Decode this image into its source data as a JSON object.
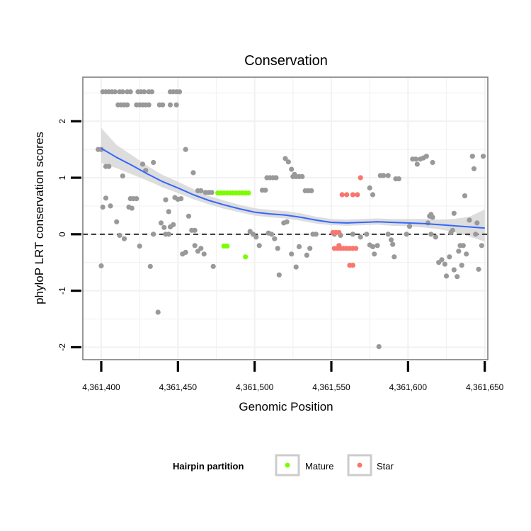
{
  "chart_data": {
    "type": "scatter",
    "title": "Conservation",
    "xlabel": "Genomic Position",
    "ylabel": "phyloP LRT conservation scores",
    "xlim": [
      4361388,
      4361652
    ],
    "ylim": [
      -2.22,
      2.78
    ],
    "x_ticks": [
      4361400,
      4361450,
      4361500,
      4361550,
      4361600,
      4361650
    ],
    "x_tick_labels": [
      "4,361,400",
      "4,361,450",
      "4,361,500",
      "4,361,550",
      "4,361,600",
      "4,361,650"
    ],
    "y_ticks": [
      -2,
      -1,
      0,
      1,
      2
    ],
    "y_tick_labels": [
      "-2",
      "-1",
      "0",
      "1",
      "2"
    ],
    "reference_line": {
      "y": 0,
      "style": "dashed"
    },
    "legend": {
      "title": "Hairpin partition",
      "position": "bottom",
      "entries": [
        {
          "label": "Mature",
          "color": "#7cfc00"
        },
        {
          "label": "Star",
          "color": "#f8766d"
        }
      ]
    },
    "colors": {
      "other": "#999999",
      "Mature": "#7cfc00",
      "Star": "#f8766d",
      "smooth_line": "#3366ff",
      "band": "#d9d9d9",
      "panel_border": "#7f7f7f",
      "grid": "#f2f2f2"
    },
    "smooth": {
      "x": [
        4361400,
        4361410,
        4361420,
        4361430,
        4361440,
        4361450,
        4361460,
        4361470,
        4361480,
        4361490,
        4361500,
        4361510,
        4361520,
        4361530,
        4361540,
        4361550,
        4361560,
        4361570,
        4361580,
        4361590,
        4361600,
        4361610,
        4361620,
        4361630,
        4361640,
        4361650
      ],
      "y": [
        1.52,
        1.36,
        1.22,
        1.07,
        0.93,
        0.82,
        0.7,
        0.6,
        0.52,
        0.45,
        0.39,
        0.36,
        0.34,
        0.3,
        0.25,
        0.21,
        0.2,
        0.21,
        0.22,
        0.21,
        0.2,
        0.19,
        0.17,
        0.15,
        0.13,
        0.11
      ],
      "lower": [
        1.26,
        1.17,
        1.06,
        0.95,
        0.83,
        0.73,
        0.62,
        0.53,
        0.45,
        0.39,
        0.33,
        0.3,
        0.28,
        0.24,
        0.19,
        0.16,
        0.15,
        0.16,
        0.17,
        0.15,
        0.14,
        0.12,
        0.09,
        0.04,
        -0.04,
        -0.13
      ],
      "upper": [
        1.88,
        1.58,
        1.4,
        1.21,
        1.05,
        0.93,
        0.8,
        0.68,
        0.6,
        0.52,
        0.46,
        0.43,
        0.41,
        0.37,
        0.31,
        0.27,
        0.26,
        0.27,
        0.28,
        0.27,
        0.27,
        0.27,
        0.26,
        0.27,
        0.31,
        0.44
      ]
    },
    "series": [
      {
        "name": "other",
        "points": [
          [
            4361401,
            2.52
          ],
          [
            4361403,
            2.52
          ],
          [
            4361405,
            2.52
          ],
          [
            4361407,
            2.52
          ],
          [
            4361409,
            2.52
          ],
          [
            4361412,
            2.52
          ],
          [
            4361414,
            2.52
          ],
          [
            4361417,
            2.52
          ],
          [
            4361419,
            2.52
          ],
          [
            4361424,
            2.52
          ],
          [
            4361426,
            2.52
          ],
          [
            4361428,
            2.52
          ],
          [
            4361431,
            2.52
          ],
          [
            4361433,
            2.52
          ],
          [
            4361445,
            2.52
          ],
          [
            4361447,
            2.52
          ],
          [
            4361449,
            2.52
          ],
          [
            4361451,
            2.52
          ],
          [
            4361411,
            2.29
          ],
          [
            4361413,
            2.29
          ],
          [
            4361415,
            2.29
          ],
          [
            4361417,
            2.29
          ],
          [
            4361423,
            2.29
          ],
          [
            4361425,
            2.29
          ],
          [
            4361427,
            2.29
          ],
          [
            4361429,
            2.29
          ],
          [
            4361431,
            2.29
          ],
          [
            4361438,
            2.29
          ],
          [
            4361440,
            2.29
          ],
          [
            4361445,
            2.29
          ],
          [
            4361449,
            2.29
          ],
          [
            4361398,
            1.5
          ],
          [
            4361400,
            1.5
          ],
          [
            4361403,
            1.2
          ],
          [
            4361405,
            1.2
          ],
          [
            4361414,
            1.03
          ],
          [
            4361427,
            1.24
          ],
          [
            4361434,
            1.27
          ],
          [
            4361429,
            1.13
          ],
          [
            4361455,
            1.5
          ],
          [
            4361460,
            1.09
          ],
          [
            4361463,
            0.77
          ],
          [
            4361465,
            0.77
          ],
          [
            4361403,
            0.64
          ],
          [
            4361419,
            0.63
          ],
          [
            4361421,
            0.63
          ],
          [
            4361423,
            0.63
          ],
          [
            4361401,
            0.48
          ],
          [
            4361406,
            0.5
          ],
          [
            4361418,
            0.48
          ],
          [
            4361420,
            0.46
          ],
          [
            4361442,
            0.61
          ],
          [
            4361448,
            0.65
          ],
          [
            4361450,
            0.62
          ],
          [
            4361452,
            0.63
          ],
          [
            4361439,
            0.2
          ],
          [
            4361441,
            0.12
          ],
          [
            4361444,
            0.4
          ],
          [
            4361445,
            0.13
          ],
          [
            4361447,
            0.17
          ],
          [
            4361457,
            0.32
          ],
          [
            4361459,
            0.07
          ],
          [
            4361461,
            0.07
          ],
          [
            4361468,
            0.74
          ],
          [
            4361470,
            0.74
          ],
          [
            4361472,
            0.74
          ],
          [
            4361410,
            0.22
          ],
          [
            4361412,
            -0.02
          ],
          [
            4361415,
            -0.08
          ],
          [
            4361425,
            -0.21
          ],
          [
            4361434,
            0.0
          ],
          [
            4361442,
            0.0
          ],
          [
            4361444,
            0.0
          ],
          [
            4361432,
            -0.57
          ],
          [
            4361437,
            -1.38
          ],
          [
            4361400,
            -0.56
          ],
          [
            4361453,
            -0.35
          ],
          [
            4361455,
            -0.32
          ],
          [
            4361461,
            -0.2
          ],
          [
            4361463,
            -0.3
          ],
          [
            4361465,
            -0.25
          ],
          [
            4361467,
            -0.35
          ],
          [
            4361473,
            -0.57
          ],
          [
            4361497,
            0.05
          ],
          [
            4361499,
            0.0
          ],
          [
            4361501,
            -0.05
          ],
          [
            4361503,
            -0.2
          ],
          [
            4361505,
            0.78
          ],
          [
            4361507,
            0.78
          ],
          [
            4361508,
            1.0
          ],
          [
            4361510,
            1.0
          ],
          [
            4361512,
            1.0
          ],
          [
            4361514,
            1.0
          ],
          [
            4361509,
            0.02
          ],
          [
            4361511,
            0.0
          ],
          [
            4361513,
            -0.08
          ],
          [
            4361515,
            -0.25
          ],
          [
            4361516,
            -0.72
          ],
          [
            4361519,
            0.2
          ],
          [
            4361521,
            0.22
          ],
          [
            4361520,
            1.34
          ],
          [
            4361522,
            1.28
          ],
          [
            4361524,
            1.15
          ],
          [
            4361525,
            1.02
          ],
          [
            4361527,
            1.02
          ],
          [
            4361529,
            1.02
          ],
          [
            4361531,
            1.02
          ],
          [
            4361526,
            1.06
          ],
          [
            4361524,
            -0.35
          ],
          [
            4361527,
            -0.58
          ],
          [
            4361533,
            0.77
          ],
          [
            4361535,
            0.77
          ],
          [
            4361537,
            0.77
          ],
          [
            4361529,
            -0.22
          ],
          [
            4361534,
            -0.37
          ],
          [
            4361536,
            -0.25
          ],
          [
            4361538,
            0.0
          ],
          [
            4361540,
            0.0
          ],
          [
            4361552,
            0.0
          ],
          [
            4361556,
            -0.02
          ],
          [
            4361564,
            0.0
          ],
          [
            4361569,
            -0.05
          ],
          [
            4361573,
            0.0
          ],
          [
            4361575,
            -0.19
          ],
          [
            4361577,
            -0.22
          ],
          [
            4361578,
            -0.35
          ],
          [
            4361580,
            -0.2
          ],
          [
            4361581,
            -1.99
          ],
          [
            4361575,
            0.82
          ],
          [
            4361577,
            0.7
          ],
          [
            4361582,
            1.04
          ],
          [
            4361584,
            1.04
          ],
          [
            4361587,
            1.04
          ],
          [
            4361587,
            0.0
          ],
          [
            4361589,
            -0.1
          ],
          [
            4361590,
            -0.18
          ],
          [
            4361591,
            -0.4
          ],
          [
            4361592,
            0.98
          ],
          [
            4361594,
            0.98
          ],
          [
            4361599,
            0.0
          ],
          [
            4361601,
            0.14
          ],
          [
            4361603,
            1.33
          ],
          [
            4361605,
            1.33
          ],
          [
            4361606,
            1.24
          ],
          [
            4361608,
            1.33
          ],
          [
            4361610,
            1.35
          ],
          [
            4361612,
            1.38
          ],
          [
            4361616,
            1.27
          ],
          [
            4361613,
            0.2
          ],
          [
            4361614,
            0.32
          ],
          [
            4361615,
            0.35
          ],
          [
            4361616,
            0.3
          ],
          [
            4361615,
            0.0
          ],
          [
            4361618,
            -0.05
          ],
          [
            4361620,
            -0.5
          ],
          [
            4361622,
            -0.45
          ],
          [
            4361624,
            -0.53
          ],
          [
            4361625,
            -0.74
          ],
          [
            4361627,
            -0.4
          ],
          [
            4361628,
            0.03
          ],
          [
            4361629,
            0.07
          ],
          [
            4361630,
            0.37
          ],
          [
            4361630,
            -0.63
          ],
          [
            4361632,
            -0.75
          ],
          [
            4361633,
            -0.3
          ],
          [
            4361634,
            -0.2
          ],
          [
            4361636,
            -0.2
          ],
          [
            4361635,
            -0.55
          ],
          [
            4361637,
            0.68
          ],
          [
            4361638,
            -0.35
          ],
          [
            4361640,
            0.25
          ],
          [
            4361642,
            1.38
          ],
          [
            4361643,
            1.16
          ],
          [
            4361644,
            0.0
          ],
          [
            4361645,
            0.2
          ],
          [
            4361646,
            -0.62
          ],
          [
            4361648,
            -0.2
          ],
          [
            4361649,
            1.38
          ]
        ]
      },
      {
        "name": "Mature",
        "points": [
          [
            4361476,
            0.73
          ],
          [
            4361478,
            0.73
          ],
          [
            4361480,
            0.73
          ],
          [
            4361482,
            0.73
          ],
          [
            4361484,
            0.73
          ],
          [
            4361486,
            0.73
          ],
          [
            4361488,
            0.73
          ],
          [
            4361490,
            0.73
          ],
          [
            4361492,
            0.73
          ],
          [
            4361494,
            0.73
          ],
          [
            4361496,
            0.73
          ],
          [
            4361480,
            -0.21
          ],
          [
            4361482,
            -0.21
          ],
          [
            4361494,
            -0.4
          ]
        ]
      },
      {
        "name": "Star",
        "points": [
          [
            4361551,
            0.03
          ],
          [
            4361553,
            0.03
          ],
          [
            4361555,
            0.03
          ],
          [
            4361552,
            -0.25
          ],
          [
            4361554,
            -0.25
          ],
          [
            4361556,
            -0.25
          ],
          [
            4361558,
            -0.25
          ],
          [
            4361560,
            -0.25
          ],
          [
            4361562,
            -0.25
          ],
          [
            4361564,
            -0.25
          ],
          [
            4361566,
            -0.25
          ],
          [
            4361555,
            -0.2
          ],
          [
            4361557,
            0.7
          ],
          [
            4361560,
            0.7
          ],
          [
            4361564,
            0.7
          ],
          [
            4361567,
            0.7
          ],
          [
            4361569,
            1.0
          ],
          [
            4361562,
            -0.55
          ],
          [
            4361564,
            -0.55
          ]
        ]
      }
    ]
  }
}
